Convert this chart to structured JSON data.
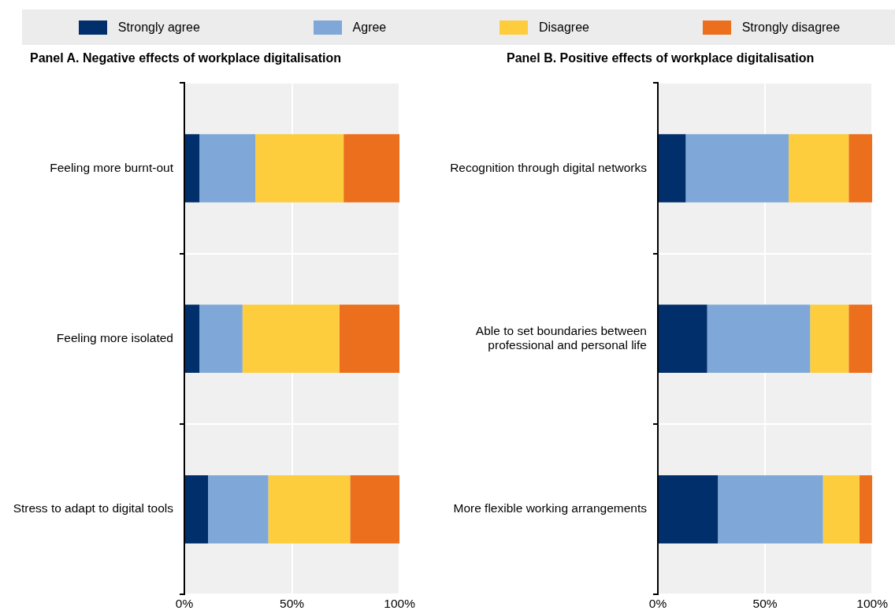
{
  "chart_data": [
    {
      "type": "bar",
      "orientation": "horizontal",
      "stacked": true,
      "title": "Panel A. Negative effects of workplace digitalisation",
      "categories": [
        "Feeling more burnt-out",
        "Feeling more isolated",
        "Stress to adapt to digital tools"
      ],
      "series": [
        {
          "name": "Strongly agree",
          "color": "#002f6c",
          "values": [
            7,
            7,
            11
          ]
        },
        {
          "name": "Agree",
          "color": "#7fa8d9",
          "values": [
            26,
            20,
            28
          ]
        },
        {
          "name": "Disagree",
          "color": "#fdcd3e",
          "values": [
            41,
            45,
            38
          ]
        },
        {
          "name": "Strongly disagree",
          "color": "#eb6f1c",
          "values": [
            26,
            28,
            23
          ]
        }
      ],
      "xlim": [
        0,
        100
      ],
      "xticks": [
        {
          "value": 0,
          "label": "0%"
        },
        {
          "value": 50,
          "label": "50%"
        },
        {
          "value": 100,
          "label": "100%"
        }
      ],
      "grid": true,
      "legend": "top"
    },
    {
      "type": "bar",
      "orientation": "horizontal",
      "stacked": true,
      "title": "Panel B. Positive effects of workplace digitalisation",
      "categories": [
        "Recognition through digital networks",
        "Able to set boundaries between professional and personal life",
        "More flexible working arrangements"
      ],
      "series": [
        {
          "color": "#002f6c",
          "values": [
            13,
            23,
            28
          ]
        },
        {
          "color": "#7fa8d9",
          "values": [
            48,
            48,
            49
          ]
        },
        {
          "color": "#fdcd3e",
          "values": [
            28,
            18,
            17
          ]
        },
        {
          "color": "#eb6f1c",
          "values": [
            11,
            11,
            6
          ]
        }
      ],
      "xlim": [
        0,
        100
      ],
      "xticks": [
        {
          "value": 0,
          "label": "0%"
        },
        {
          "value": 50,
          "label": "50%"
        },
        {
          "value": 100,
          "label": "100%"
        }
      ],
      "grid": true
    }
  ]
}
